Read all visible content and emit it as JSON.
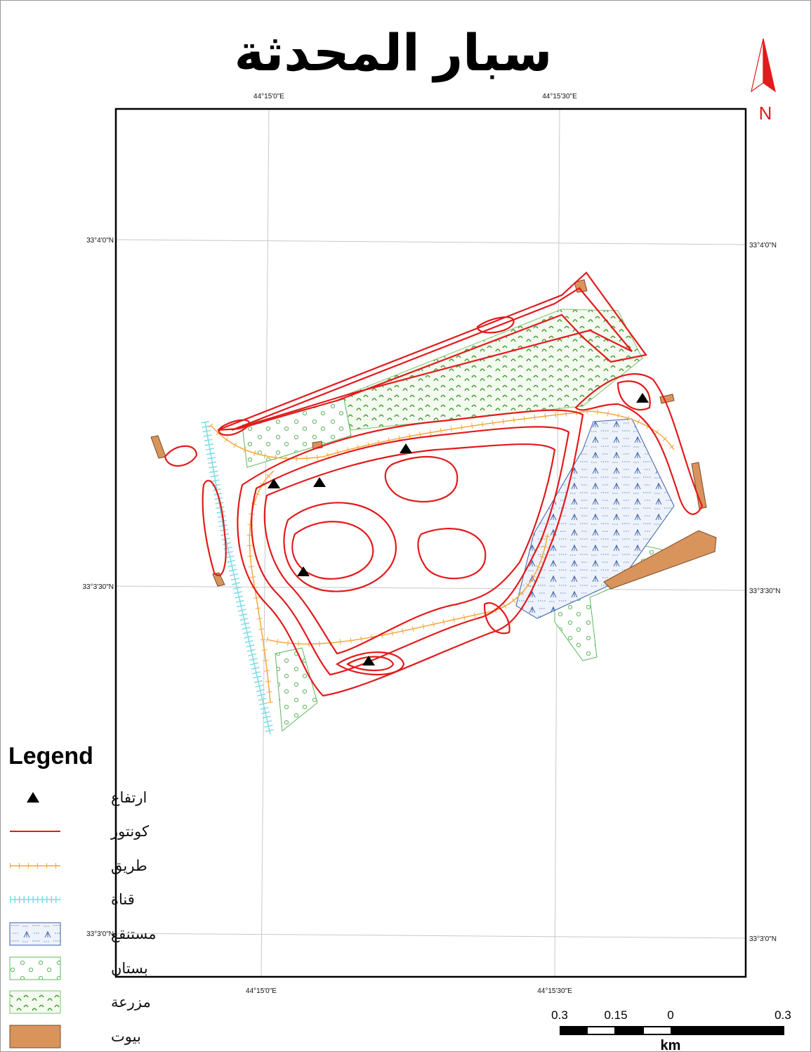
{
  "title": "سبار المحدثة",
  "north_arrow": {
    "label": "N"
  },
  "graticule": {
    "top": [
      "44°15'0\"E",
      "44°15'30\"E"
    ],
    "bottom": [
      "44°15'0\"E",
      "44°15'30\"E"
    ],
    "left": [
      "33°4'0\"N",
      "33°3'30\"N",
      "33°3'0\"N"
    ],
    "right": [
      "33°4'0\"N",
      "33°3'30\"N",
      "33°3'0\"N"
    ]
  },
  "legend": {
    "title": "Legend",
    "items": [
      "ارتفاع",
      "كونتور",
      "طريق",
      "قناة",
      "مستنقع",
      "بستان",
      "مزرعة",
      "بيوت"
    ]
  },
  "scale_bar": {
    "labels": [
      "0.3",
      "0.15",
      "0",
      "0.3"
    ],
    "unit": "km"
  }
}
